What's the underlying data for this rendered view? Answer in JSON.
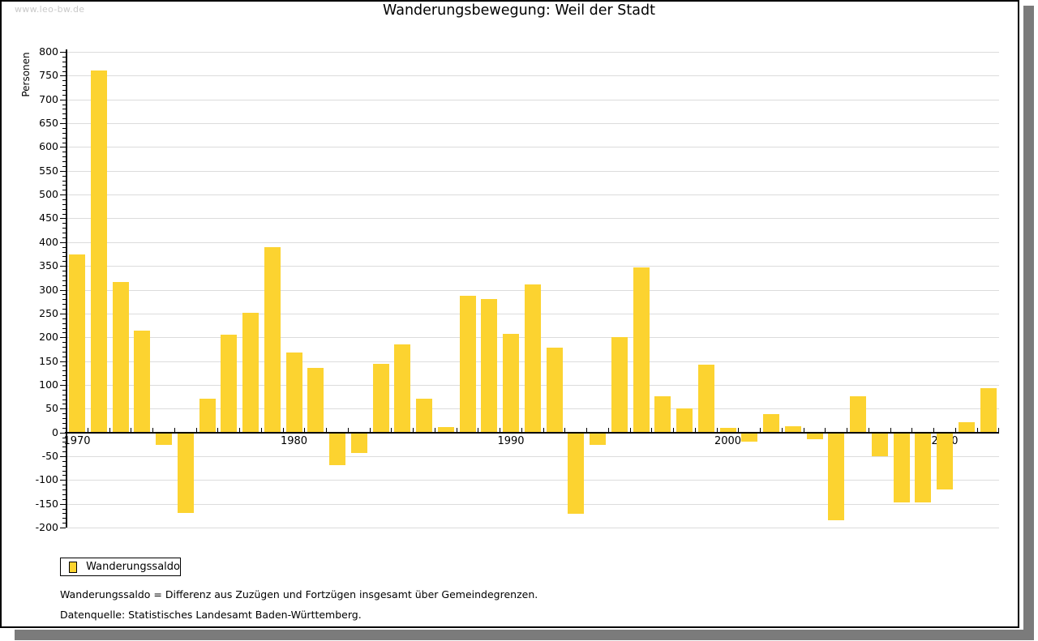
{
  "watermark": "www.leo-bw.de",
  "chart_data": {
    "type": "bar",
    "title": "Wanderungsbewegung: Weil der Stadt",
    "ylabel": "Personen",
    "ylim": [
      -200,
      800
    ],
    "ytick_step": 50,
    "y_minor_tick_step": 10,
    "grid": true,
    "legend": {
      "label": "Wanderungssaldo",
      "position": "bottom-left-below-plot"
    },
    "bar_color": "#FCD330",
    "grid_color": "#DCDCDC",
    "categories": [
      1970,
      1971,
      1972,
      1973,
      1974,
      1975,
      1976,
      1977,
      1978,
      1979,
      1980,
      1981,
      1982,
      1983,
      1984,
      1985,
      1986,
      1987,
      1988,
      1989,
      1990,
      1991,
      1992,
      1993,
      1994,
      1995,
      1996,
      1997,
      1998,
      1999,
      2000,
      2001,
      2002,
      2003,
      2004,
      2005,
      2006,
      2007,
      2008,
      2009,
      2010,
      2011,
      2012
    ],
    "series": [
      {
        "name": "Wanderungssaldo",
        "values": [
          372,
          760,
          314,
          213,
          -25,
          -167,
          70,
          204,
          250,
          388,
          167,
          134,
          -68,
          -41,
          142,
          183,
          69,
          10,
          286,
          279,
          206,
          310,
          177,
          -169,
          -25,
          199,
          346,
          75,
          48,
          140,
          8,
          -17,
          37,
          12,
          -12,
          -183,
          74,
          -48,
          -146,
          -146,
          -119,
          20,
          92
        ]
      }
    ],
    "xtick_labels": [
      "1970",
      "1980",
      "1990",
      "2000",
      "2010"
    ]
  },
  "footnotes": [
    "Wanderungssaldo = Differenz aus Zuzügen und Fortzügen insgesamt über Gemeindegrenzen.",
    "Datenquelle: Statistisches Landesamt Baden-Württemberg."
  ],
  "colors": {
    "bar": "#FCD330",
    "grid": "#DCDCDC",
    "axis": "#000000",
    "watermark": "#C9C9C9",
    "shadow": "#7B7B7B"
  }
}
